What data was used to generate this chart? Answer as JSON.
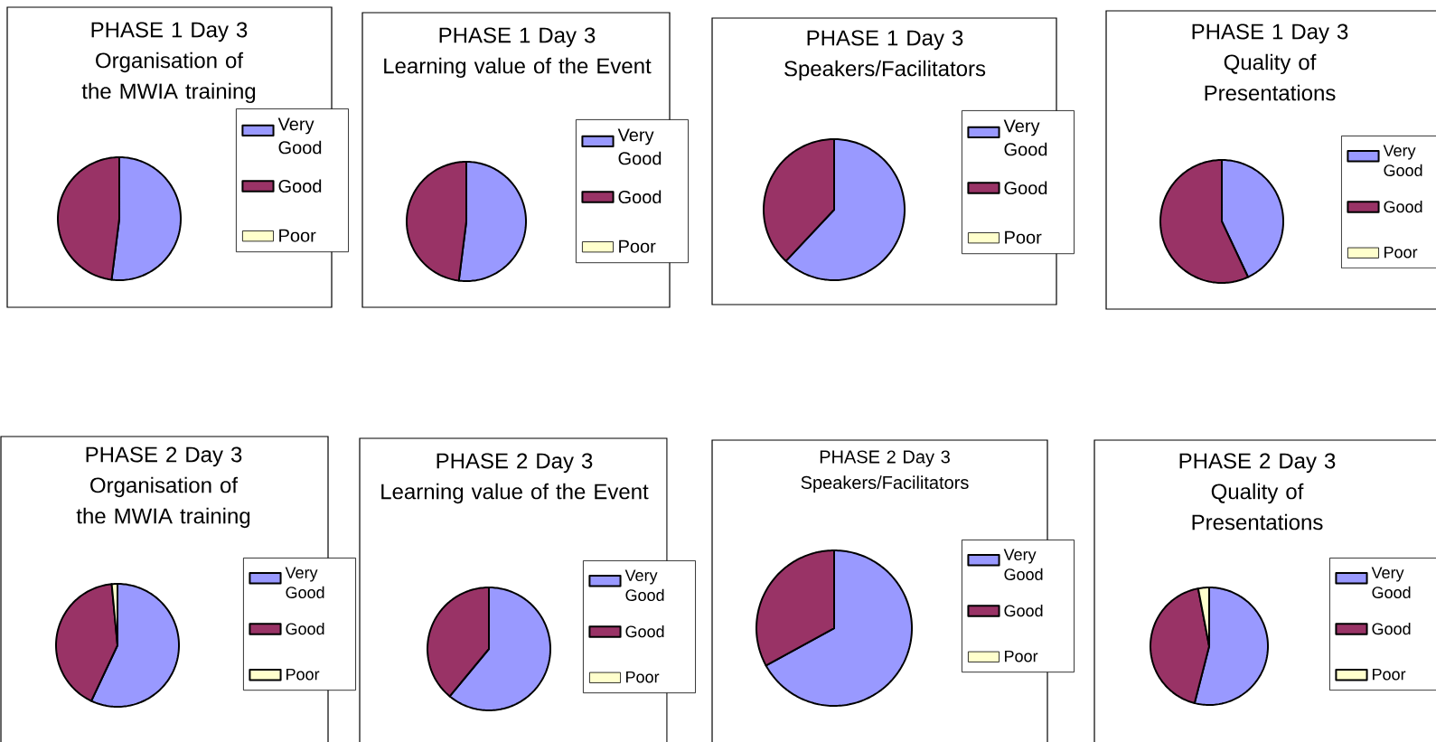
{
  "chart_data": [
    {
      "type": "pie",
      "title": "PHASE 1 Day 3",
      "subtitle": "Organisation of the MWIA training",
      "categories": [
        "Very Good",
        "Good",
        "Poor"
      ],
      "values": [
        52,
        48,
        0
      ],
      "colors": [
        "#9999ff",
        "#993366",
        "#ffffcc"
      ],
      "legend": "right"
    },
    {
      "type": "pie",
      "title": "PHASE 1 Day 3",
      "subtitle": "Learning value of the Event",
      "categories": [
        "Very Good",
        "Good",
        "Poor"
      ],
      "values": [
        52,
        48,
        0
      ],
      "colors": [
        "#9999ff",
        "#993366",
        "#ffffcc"
      ],
      "legend": "right"
    },
    {
      "type": "pie",
      "title": "PHASE 1 Day 3",
      "subtitle": "Speakers/Facilitators",
      "categories": [
        "Very Good",
        "Good",
        "Poor"
      ],
      "values": [
        62,
        38,
        0
      ],
      "colors": [
        "#9999ff",
        "#993366",
        "#ffffcc"
      ],
      "legend": "right"
    },
    {
      "type": "pie",
      "title": "PHASE 1 Day 3",
      "subtitle": "Quality of Presentations",
      "categories": [
        "Very Good",
        "Good",
        "Poor"
      ],
      "values": [
        43,
        57,
        0
      ],
      "colors": [
        "#9999ff",
        "#993366",
        "#ffffcc"
      ],
      "legend": "right"
    },
    {
      "type": "pie",
      "title": "PHASE 2 Day 3",
      "subtitle": "Organisation of the MWIA training",
      "categories": [
        "Very Good",
        "Good",
        "Poor"
      ],
      "values": [
        57,
        41.5,
        1.5
      ],
      "colors": [
        "#9999ff",
        "#993366",
        "#ffffcc"
      ],
      "legend": "right"
    },
    {
      "type": "pie",
      "title": "PHASE 2 Day 3",
      "subtitle": "Learning value of the Event",
      "categories": [
        "Very Good",
        "Good",
        "Poor"
      ],
      "values": [
        61,
        39,
        0
      ],
      "colors": [
        "#9999ff",
        "#993366",
        "#ffffcc"
      ],
      "legend": "right"
    },
    {
      "type": "pie",
      "title": "PHASE 2 Day 3",
      "subtitle": "Speakers/Facilitators",
      "categories": [
        "Very Good",
        "Good",
        "Poor"
      ],
      "values": [
        67,
        33,
        0
      ],
      "colors": [
        "#9999ff",
        "#993366",
        "#ffffcc"
      ],
      "legend": "right"
    },
    {
      "type": "pie",
      "title": "PHASE 2 Day 3",
      "subtitle": "Quality of Presentations",
      "categories": [
        "Very Good",
        "Good",
        "Poor"
      ],
      "values": [
        54,
        43,
        3
      ],
      "colors": [
        "#9999ff",
        "#993366",
        "#ffffcc"
      ],
      "legend": "right"
    }
  ]
}
